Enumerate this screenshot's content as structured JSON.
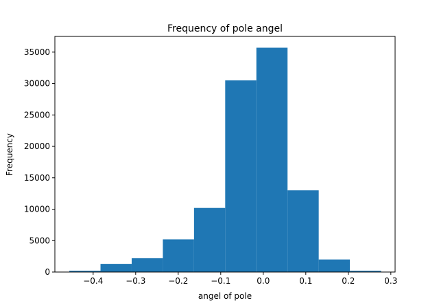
{
  "chart_data": {
    "type": "bar",
    "title": "Frequency of pole angel",
    "xlabel": "angel of pole",
    "ylabel": "Frequency",
    "bin_edges": [
      -0.456,
      -0.3827,
      -0.3094,
      -0.2361,
      -0.1628,
      -0.0895,
      -0.0162,
      0.0571,
      0.1304,
      0.2037,
      0.277
    ],
    "values": [
      200,
      1300,
      2200,
      5200,
      10200,
      30500,
      35700,
      13000,
      2000,
      200
    ],
    "xlim": [
      -0.49,
      0.31
    ],
    "ylim": [
      0,
      37500
    ],
    "xticks": [
      -0.4,
      -0.3,
      -0.2,
      -0.1,
      0.0,
      0.1,
      0.2,
      0.3
    ],
    "xtick_labels": [
      "−0.4",
      "−0.3",
      "−0.2",
      "−0.1",
      "0.0",
      "0.1",
      "0.2",
      "0.3"
    ],
    "yticks": [
      0,
      5000,
      10000,
      15000,
      20000,
      25000,
      30000,
      35000
    ],
    "ytick_labels": [
      "0",
      "5000",
      "10000",
      "15000",
      "20000",
      "25000",
      "30000",
      "35000"
    ],
    "bar_color": "#1f77b4",
    "grid": false,
    "legend": "none"
  }
}
